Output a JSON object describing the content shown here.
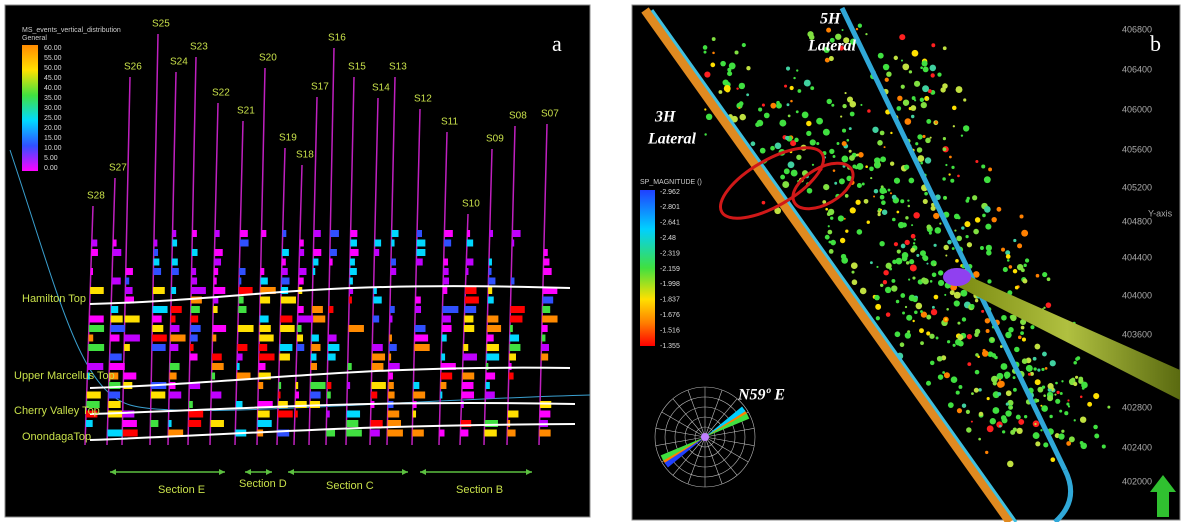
{
  "panel_a": {
    "label": "a",
    "colorbar": {
      "title": "MS_events_vertical_distribution",
      "subtitle": "General",
      "ticks": [
        "60.00",
        "55.00",
        "50.00",
        "45.00",
        "40.00",
        "35.00",
        "30.00",
        "25.00",
        "20.00",
        "15.00",
        "10.00",
        "5.00",
        "0.00"
      ]
    },
    "wells": [
      "S25",
      "S23",
      "S26",
      "S24",
      "S16",
      "S20",
      "S22",
      "S15",
      "S13",
      "S17",
      "S14",
      "S21",
      "S12",
      "S11",
      "S19",
      "S18",
      "S09",
      "S08",
      "S07",
      "S10",
      "S27",
      "S28"
    ],
    "horizons": [
      "Hamilton Top",
      "Upper Marcellus Top",
      "Cherry Valley Top",
      "OnondagaTop"
    ],
    "sections": [
      "Section E",
      "Section D",
      "Section C",
      "Section B"
    ]
  },
  "panel_b": {
    "label": "b",
    "laterals": [
      {
        "name": "5H",
        "suffix": "Lateral"
      },
      {
        "name": "3H",
        "suffix": "Lateral"
      }
    ],
    "colorbar": {
      "title": "SP_MAGNITUDE ()",
      "ticks": [
        "-2.962",
        "-2.801",
        "-2.641",
        "-2.48",
        "-2.319",
        "-2.159",
        "-1.998",
        "-1.837",
        "-1.676",
        "-1.516",
        "-1.355"
      ]
    },
    "y_axis": {
      "title": "Y-axis",
      "ticks": [
        "406800",
        "406400",
        "406000",
        "405600",
        "405200",
        "404800",
        "404400",
        "404000",
        "403600",
        "402800",
        "402400",
        "402000"
      ]
    },
    "azimuth": "N59º E"
  }
}
